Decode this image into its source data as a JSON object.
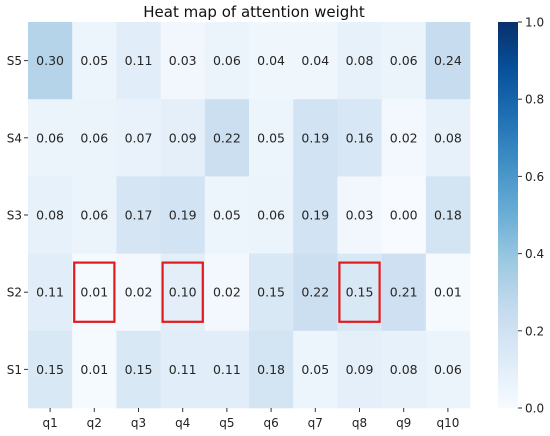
{
  "chart_data": {
    "type": "heatmap",
    "title": "Heat map of attention weight",
    "x_categories": [
      "q1",
      "q2",
      "q3",
      "q4",
      "q5",
      "q6",
      "q7",
      "q8",
      "q9",
      "q10"
    ],
    "y_categories": [
      "S5",
      "S4",
      "S3",
      "S2",
      "S1"
    ],
    "values": [
      [
        "0.30",
        "0.05",
        "0.11",
        "0.03",
        "0.06",
        "0.04",
        "0.04",
        "0.08",
        "0.06",
        "0.24"
      ],
      [
        "0.06",
        "0.06",
        "0.07",
        "0.09",
        "0.22",
        "0.05",
        "0.19",
        "0.16",
        "0.02",
        "0.08"
      ],
      [
        "0.08",
        "0.06",
        "0.17",
        "0.19",
        "0.05",
        "0.06",
        "0.19",
        "0.03",
        "0.00",
        "0.18"
      ],
      [
        "0.11",
        "0.01",
        "0.02",
        "0.10",
        "0.02",
        "0.15",
        "0.22",
        "0.15",
        "0.21",
        "0.01"
      ],
      [
        "0.15",
        "0.01",
        "0.15",
        "0.11",
        "0.11",
        "0.18",
        "0.05",
        "0.09",
        "0.08",
        "0.06"
      ]
    ],
    "color_range": [
      0.0,
      1.0
    ],
    "colorbar_ticks": [
      "0.0",
      "0.2",
      "0.4",
      "0.6",
      "0.8",
      "1.0"
    ],
    "colormap": "Blues",
    "highlighted_cells": [
      {
        "row": "S2",
        "col": "q2"
      },
      {
        "row": "S2",
        "col": "q4"
      },
      {
        "row": "S2",
        "col": "q8"
      }
    ],
    "highlight_color": "#e31a1c"
  }
}
